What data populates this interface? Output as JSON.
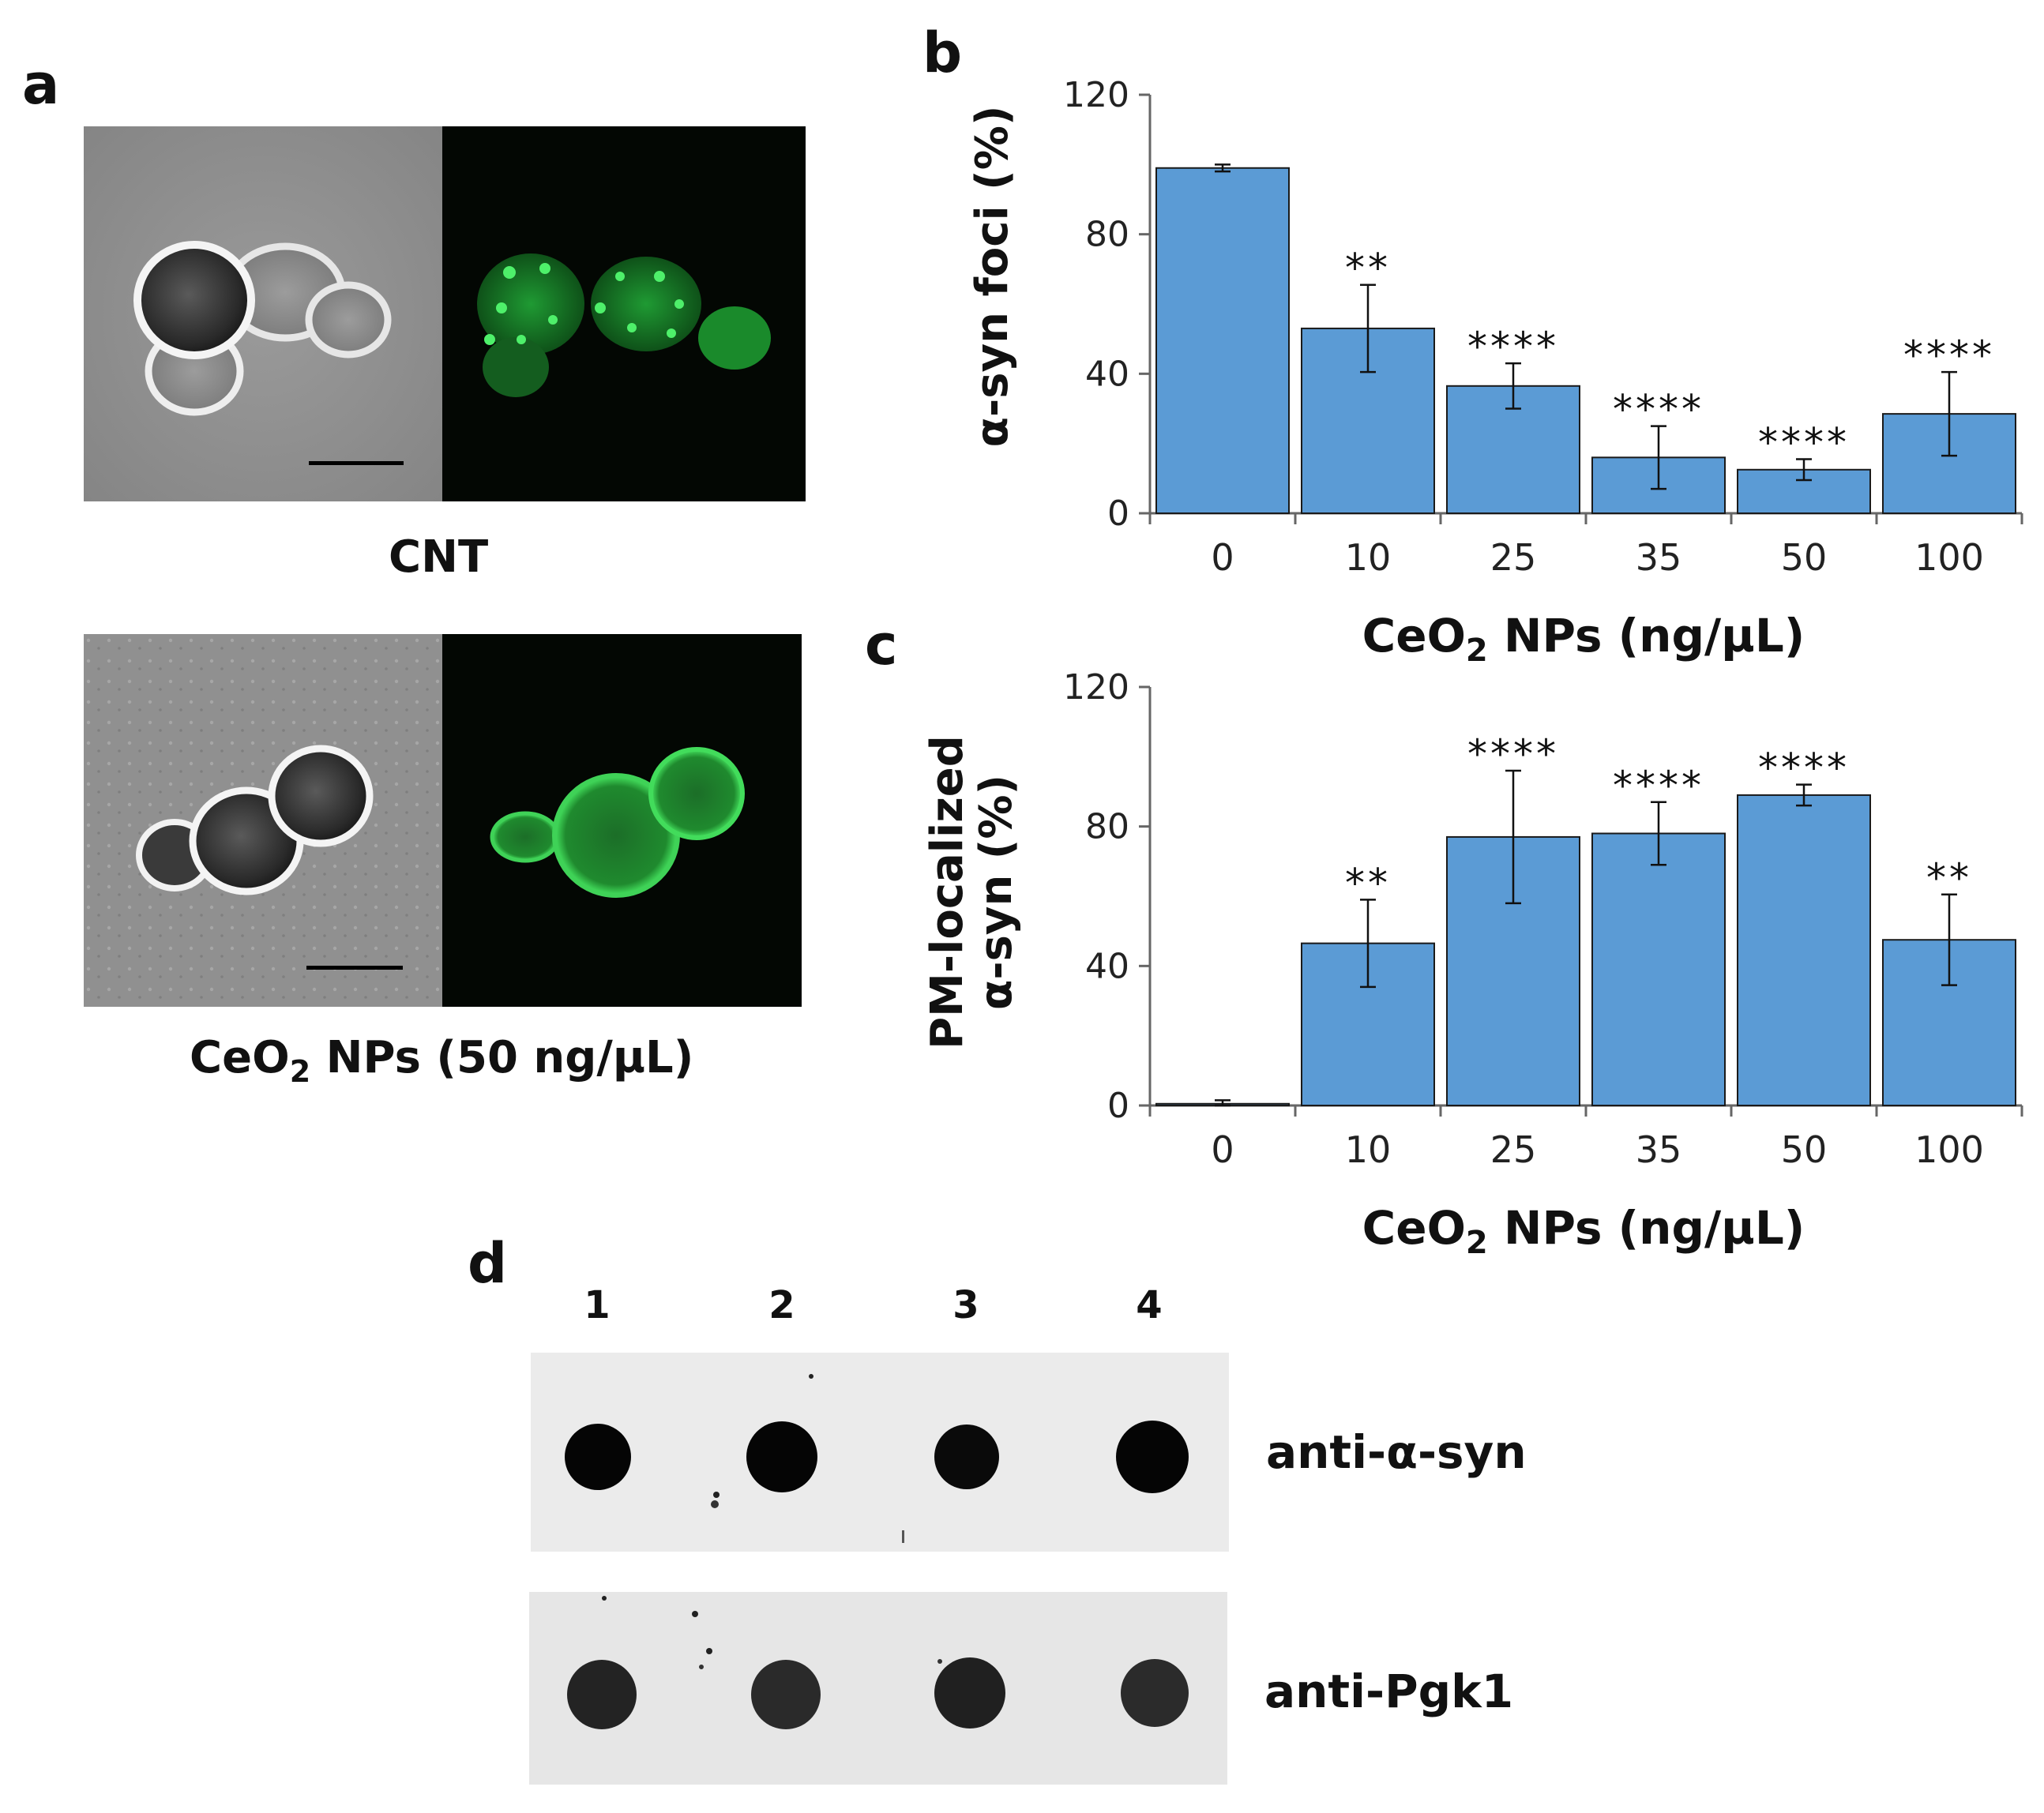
{
  "panel_labels": {
    "a": "a",
    "b": "b",
    "c": "c",
    "d": "d"
  },
  "panel_a": {
    "top_caption": "CNT",
    "bottom_caption_prefix": "CeO",
    "bottom_caption_sub": "2",
    "bottom_caption_suffix": " NPs (50 ng/µL)",
    "colors": {
      "brightfield": "#8f8f8f",
      "fluorescence_bg": "#030703",
      "gfp": "#2fd24a"
    }
  },
  "chart_data": [
    {
      "type": "bar",
      "panel": "b",
      "categories": [
        "0",
        "10",
        "25",
        "35",
        "50",
        "100"
      ],
      "values": [
        99,
        53,
        36.5,
        16,
        12.5,
        28.5
      ],
      "error": [
        1,
        12.5,
        6.5,
        9,
        3,
        12
      ],
      "significance": [
        "",
        "**",
        "****",
        "****",
        "****",
        "****"
      ],
      "ylabel": "α-syn foci (%)",
      "xlabel_prefix": "CeO",
      "xlabel_sub": "2",
      "xlabel_suffix": " NPs (ng/µL)",
      "yticks": [
        "0",
        "40",
        "80",
        "120"
      ],
      "ylim": [
        0,
        120
      ],
      "bar_color": "#5b9bd5",
      "grid": false
    },
    {
      "type": "bar",
      "panel": "c",
      "categories": [
        "0",
        "10",
        "25",
        "35",
        "50",
        "100"
      ],
      "values": [
        0.5,
        46.5,
        77,
        78,
        89,
        47.5
      ],
      "error": [
        1,
        12.5,
        19,
        9,
        3,
        13
      ],
      "significance": [
        "",
        "**",
        "****",
        "****",
        "****",
        "**"
      ],
      "ylabel_line1": "PM-localized",
      "ylabel_line2": "α-syn (%)",
      "xlabel_prefix": "CeO",
      "xlabel_sub": "2",
      "xlabel_suffix": " NPs (ng/µL)",
      "yticks": [
        "0",
        "40",
        "80",
        "120"
      ],
      "ylim": [
        0,
        120
      ],
      "bar_color": "#5b9bd5",
      "grid": false
    }
  ],
  "panel_d": {
    "lanes": [
      "1",
      "2",
      "3",
      "4"
    ],
    "blots": [
      {
        "label": "anti-α-syn",
        "dot_color": "#050505"
      },
      {
        "label": "anti-Pgk1",
        "dot_color": "#232323"
      }
    ]
  }
}
